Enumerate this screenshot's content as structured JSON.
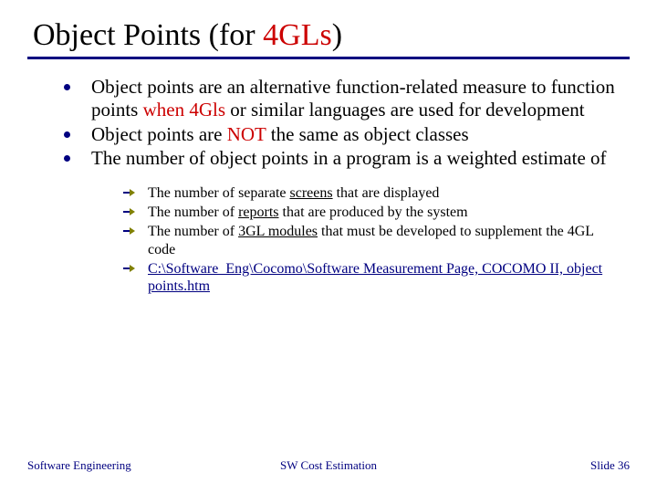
{
  "title": {
    "pre": "Object Points (for ",
    "highlight": "4GLs",
    "post": ")",
    "highlight_color": "#cc0000",
    "fontsize": 34
  },
  "rule_color": "#000080",
  "bullets": [
    {
      "segments": [
        {
          "text": "Object points are an alternative function-related measure to function points "
        },
        {
          "text": "when 4Gls",
          "color": "#cc0000"
        },
        {
          "text": " or similar languages are used for development"
        }
      ]
    },
    {
      "segments": [
        {
          "text": "Object points are "
        },
        {
          "text": "NOT",
          "color": "#cc0000"
        },
        {
          "text": " the same as object classes"
        }
      ]
    },
    {
      "segments": [
        {
          "text": " The number of object points in a program is a weighted estimate of"
        }
      ]
    }
  ],
  "sub_bullets": [
    {
      "segments": [
        {
          "text": "The number of separate "
        },
        {
          "text": "screens",
          "underline": true
        },
        {
          "text": " that are displayed"
        }
      ]
    },
    {
      "segments": [
        {
          "text": "The number of "
        },
        {
          "text": "reports",
          "underline": true
        },
        {
          "text": " that are produced by the system"
        }
      ]
    },
    {
      "segments": [
        {
          "text": "The number of "
        },
        {
          "text": "3GL modules",
          "underline": true
        },
        {
          "text": " that must be developed to supplement the 4GL code"
        }
      ]
    },
    {
      "segments": [
        {
          "text": "C:\\Software_Eng\\Cocomo\\Software Measurement Page, COCOMO II, object points.htm",
          "link": true
        }
      ]
    }
  ],
  "sub_bullet_icon_colors": {
    "stroke": "#808000",
    "shaft": "#000080"
  },
  "footer": {
    "left": "Software Engineering",
    "center": "SW Cost Estimation",
    "right": "Slide 36",
    "color": "#000080",
    "fontsize": 13
  },
  "background_color": "#ffffff"
}
